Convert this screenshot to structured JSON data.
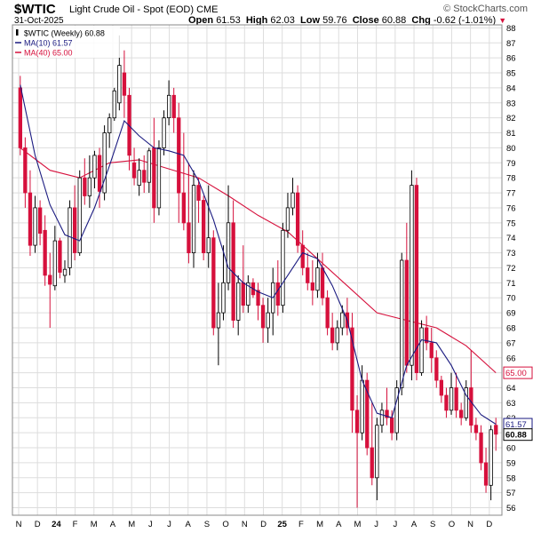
{
  "header": {
    "symbol": "$WTIC",
    "name": "Light Crude Oil - Spot (EOD)",
    "exchange": "CME",
    "date": "31-Oct-2025",
    "logo_text": "© StockCharts.com",
    "open_label": "Open",
    "open": "61.53",
    "high_label": "High",
    "high": "62.03",
    "low_label": "Low",
    "low": "59.76",
    "close_label": "Close",
    "close": "60.88",
    "chg_label": "Chg",
    "chg": "-0.62 (-1.01%)",
    "down_marker": "▼"
  },
  "legend": [
    {
      "text": "$WTIC (Weekly) 60.88",
      "color": "#000000"
    },
    {
      "text": "MA(10) 61.57",
      "color": "#1a1a80"
    },
    {
      "text": "MA(40) 65.00",
      "color": "#d6103c"
    }
  ],
  "colors": {
    "up": "#000000",
    "down": "#d6103c",
    "ma10": "#1a1a80",
    "ma40": "#d6103c",
    "grid": "#dddddd"
  },
  "chart_data": {
    "type": "candlestick",
    "interval": "weekly",
    "ylim": [
      55.5,
      88.2
    ],
    "y_ticks": [
      56,
      57,
      58,
      59,
      60,
      61,
      62,
      63,
      64,
      65,
      66,
      67,
      68,
      69,
      70,
      71,
      72,
      73,
      74,
      75,
      76,
      77,
      78,
      79,
      80,
      81,
      82,
      83,
      84,
      85,
      86,
      87,
      88
    ],
    "x_ticks": [
      "N",
      "D",
      "24",
      "F",
      "M",
      "A",
      "M",
      "J",
      "J",
      "A",
      "S",
      "O",
      "N",
      "D",
      "25",
      "F",
      "M",
      "A",
      "M",
      "J",
      "J",
      "A",
      "S",
      "O",
      "N",
      "D"
    ],
    "grid": true,
    "value_badges": [
      {
        "value": 65.0,
        "label": "65.00",
        "series": "MA(40)"
      },
      {
        "value": 61.57,
        "label": "61.57",
        "series": "MA(10)"
      },
      {
        "value": 60.88,
        "label": "60.88",
        "series": "$WTIC"
      }
    ],
    "candles": [
      [
        84.0,
        84.8,
        79.5,
        80.0
      ],
      [
        80.0,
        80.7,
        76.0,
        77.0
      ],
      [
        77.0,
        78.5,
        72.8,
        73.5
      ],
      [
        73.5,
        76.8,
        73.0,
        76.0
      ],
      [
        76.0,
        76.5,
        73.5,
        74.3
      ],
      [
        74.5,
        75.5,
        70.8,
        71.5
      ],
      [
        71.5,
        73.0,
        68.0,
        70.9
      ],
      [
        70.8,
        74.8,
        70.5,
        73.8
      ],
      [
        73.8,
        74.0,
        71.3,
        71.7
      ],
      [
        71.5,
        72.5,
        71.0,
        71.9
      ],
      [
        72.0,
        76.5,
        71.5,
        76.0
      ],
      [
        76.0,
        77.5,
        72.5,
        73.0
      ],
      [
        73.0,
        78.5,
        72.8,
        78.0
      ],
      [
        78.0,
        79.3,
        76.2,
        76.8
      ],
      [
        76.8,
        79.5,
        76.0,
        78.0
      ],
      [
        78.0,
        79.8,
        77.3,
        79.5
      ],
      [
        79.5,
        80.0,
        76.0,
        77.1
      ],
      [
        77.0,
        81.5,
        76.5,
        81.0
      ],
      [
        81.0,
        82.3,
        80.0,
        82.0
      ],
      [
        82.0,
        84.0,
        81.8,
        83.8
      ],
      [
        83.0,
        87.5,
        82.5,
        85.5
      ],
      [
        85.0,
        86.5,
        82.0,
        83.5
      ],
      [
        83.5,
        84.0,
        78.5,
        79.5
      ],
      [
        79.0,
        80.0,
        77.5,
        78.0
      ],
      [
        77.5,
        79.3,
        76.8,
        78.5
      ],
      [
        78.5,
        79.5,
        77.0,
        77.7
      ],
      [
        77.7,
        80.0,
        77.0,
        79.8
      ],
      [
        80.0,
        82.0,
        75.0,
        76.0
      ],
      [
        76.0,
        80.5,
        75.5,
        80.0
      ],
      [
        80.0,
        82.5,
        79.5,
        82.0
      ],
      [
        82.0,
        84.5,
        81.5,
        83.5
      ],
      [
        83.5,
        84.0,
        81.0,
        82.0
      ],
      [
        82.0,
        83.0,
        75.0,
        77.0
      ],
      [
        77.0,
        81.0,
        74.5,
        75.0
      ],
      [
        75.0,
        79.0,
        72.3,
        73.0
      ],
      [
        73.0,
        78.5,
        72.0,
        77.5
      ],
      [
        77.5,
        78.0,
        75.0,
        76.5
      ],
      [
        76.5,
        76.8,
        72.5,
        73.0
      ],
      [
        73.0,
        77.5,
        72.0,
        74.0
      ],
      [
        74.0,
        74.5,
        67.5,
        68.0
      ],
      [
        68.0,
        71.0,
        65.5,
        69.0
      ],
      [
        69.0,
        73.5,
        68.5,
        71.0
      ],
      [
        71.0,
        77.5,
        70.5,
        75.0
      ],
      [
        75.0,
        76.5,
        68.0,
        68.5
      ],
      [
        68.5,
        71.5,
        67.5,
        71.0
      ],
      [
        71.0,
        73.5,
        69.0,
        69.5
      ],
      [
        69.5,
        71.5,
        69.0,
        71.0
      ],
      [
        71.0,
        71.3,
        70.0,
        70.2
      ],
      [
        70.5,
        71.0,
        68.5,
        69.5
      ],
      [
        69.5,
        70.0,
        67.0,
        68.0
      ],
      [
        68.0,
        70.0,
        67.0,
        69.0
      ],
      [
        69.0,
        72.0,
        67.5,
        71.0
      ],
      [
        71.0,
        72.5,
        68.8,
        69.5
      ],
      [
        69.5,
        75.0,
        69.0,
        74.5
      ],
      [
        74.5,
        77.0,
        74.0,
        76.0
      ],
      [
        76.0,
        78.0,
        75.5,
        77.0
      ],
      [
        77.0,
        77.5,
        73.0,
        73.5
      ],
      [
        73.5,
        74.5,
        71.5,
        72.0
      ],
      [
        72.0,
        73.0,
        70.5,
        71.0
      ],
      [
        71.0,
        72.5,
        69.5,
        70.5
      ],
      [
        70.5,
        73.0,
        70.0,
        72.0
      ],
      [
        72.0,
        73.0,
        69.5,
        70.0
      ],
      [
        70.0,
        70.5,
        67.5,
        68.0
      ],
      [
        68.0,
        69.0,
        66.5,
        67.0
      ],
      [
        67.0,
        68.5,
        66.5,
        68.0
      ],
      [
        68.0,
        69.5,
        67.5,
        69.0
      ],
      [
        69.0,
        70.0,
        67.5,
        68.0
      ],
      [
        68.0,
        69.0,
        61.0,
        62.5
      ],
      [
        62.5,
        63.5,
        56.0,
        61.0
      ],
      [
        61.0,
        65.5,
        60.5,
        64.5
      ],
      [
        64.5,
        65.0,
        59.5,
        60.0
      ],
      [
        60.0,
        63.0,
        57.5,
        58.0
      ],
      [
        58.0,
        62.0,
        56.5,
        61.5
      ],
      [
        61.5,
        63.0,
        61.0,
        62.5
      ],
      [
        62.5,
        64.0,
        61.5,
        62.0
      ],
      [
        62.0,
        62.5,
        60.5,
        61.0
      ],
      [
        61.0,
        64.5,
        60.5,
        64.0
      ],
      [
        64.0,
        73.0,
        63.5,
        72.5
      ],
      [
        72.5,
        75.0,
        65.0,
        65.5
      ],
      [
        65.5,
        78.5,
        64.5,
        77.5
      ],
      [
        77.5,
        78.0,
        64.5,
        65.0
      ],
      [
        65.0,
        68.5,
        64.8,
        68.0
      ],
      [
        68.0,
        68.8,
        66.5,
        67.0
      ],
      [
        67.0,
        68.0,
        65.0,
        66.0
      ],
      [
        66.0,
        66.5,
        64.0,
        64.5
      ],
      [
        64.5,
        64.8,
        63.0,
        63.5
      ],
      [
        63.5,
        64.0,
        62.0,
        62.5
      ],
      [
        62.5,
        65.0,
        62.2,
        64.0
      ],
      [
        64.0,
        65.0,
        62.0,
        62.5
      ],
      [
        62.5,
        63.0,
        61.5,
        62.0
      ],
      [
        62.0,
        64.5,
        61.8,
        64.0
      ],
      [
        64.0,
        66.5,
        61.0,
        61.5
      ],
      [
        61.5,
        62.0,
        60.5,
        61.0
      ],
      [
        61.0,
        61.5,
        58.5,
        59.0
      ],
      [
        59.0,
        60.0,
        57.0,
        57.5
      ],
      [
        57.5,
        61.5,
        56.5,
        61.2
      ],
      [
        61.5,
        62.0,
        59.8,
        60.9
      ]
    ],
    "ma10": [
      [
        0,
        84.2
      ],
      [
        3,
        79.5
      ],
      [
        6,
        76.2
      ],
      [
        9,
        74.2
      ],
      [
        12,
        73.8
      ],
      [
        15,
        76.0
      ],
      [
        18,
        78.8
      ],
      [
        21,
        81.8
      ],
      [
        24,
        80.8
      ],
      [
        27,
        80.0
      ],
      [
        30,
        79.8
      ],
      [
        33,
        79.5
      ],
      [
        36,
        77.8
      ],
      [
        39,
        75.2
      ],
      [
        42,
        72.0
      ],
      [
        45,
        71.0
      ],
      [
        48,
        70.4
      ],
      [
        51,
        70.0
      ],
      [
        54,
        71.5
      ],
      [
        57,
        73.0
      ],
      [
        60,
        72.6
      ],
      [
        63,
        70.8
      ],
      [
        66,
        68.5
      ],
      [
        69,
        64.5
      ],
      [
        72,
        62.3
      ],
      [
        75,
        62.0
      ],
      [
        78,
        65.5
      ],
      [
        81,
        67.2
      ],
      [
        84,
        67.0
      ],
      [
        87,
        65.5
      ],
      [
        90,
        63.5
      ],
      [
        93,
        62.2
      ],
      [
        96,
        61.57
      ]
    ],
    "ma40": [
      [
        0,
        80.0
      ],
      [
        6,
        78.5
      ],
      [
        12,
        78.0
      ],
      [
        18,
        79.0
      ],
      [
        24,
        79.2
      ],
      [
        30,
        78.6
      ],
      [
        36,
        78.0
      ],
      [
        42,
        76.8
      ],
      [
        48,
        75.5
      ],
      [
        54,
        74.4
      ],
      [
        60,
        72.6
      ],
      [
        66,
        70.8
      ],
      [
        72,
        69.0
      ],
      [
        78,
        68.5
      ],
      [
        84,
        68.0
      ],
      [
        90,
        66.8
      ],
      [
        96,
        65.0
      ]
    ]
  }
}
